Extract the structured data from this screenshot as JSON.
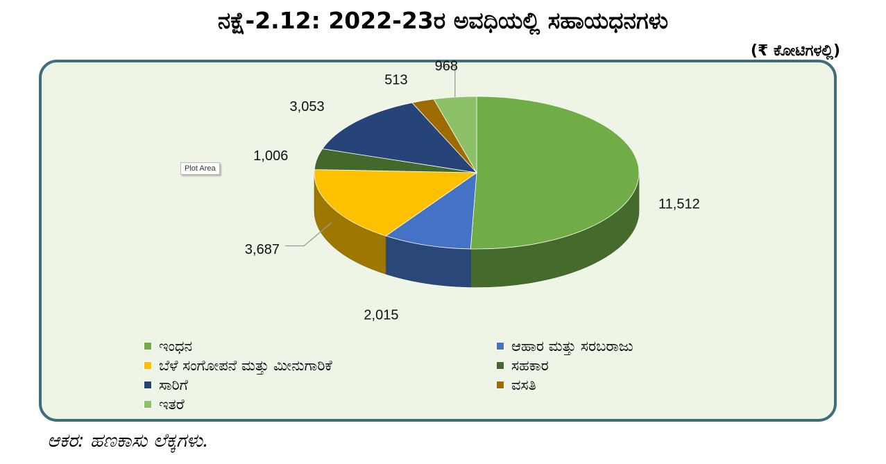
{
  "title": "ನಕ್ಷೆ-2.12:  2022-23ರ ಅವಧಿಯಲ್ಲಿ  ಸಹಾಯಧನಗಳು",
  "unit_label": "(₹ ಕೋಟಿಗಳಲ್ಲಿ)",
  "tooltip": "Plot Area",
  "source": "ಆಕರ:  ಹಣಕಾಸು  ಲೆಕ್ಕಗಳು.",
  "chart_data": {
    "type": "pie",
    "style": "3d",
    "legend_position": "bottom",
    "categories": [
      "ಇಂಧನ",
      "ಆಹಾರ ಮತ್ತು ಸರಬರಾಜು",
      "ಬೆಳೆ ಸಂಗೋಪನೆ ಮತ್ತು ಮೀನುಗಾರಿಕೆ",
      "ಸಹಕಾರ",
      "ಸಾರಿಗೆ",
      "ವಸತಿ",
      "ಇತರೆ"
    ],
    "values": [
      11512,
      2015,
      3687,
      1006,
      3053,
      513,
      968
    ],
    "value_labels": [
      "11,512",
      "2,015",
      "3,687",
      "1,006",
      "3,053",
      "513",
      "968"
    ],
    "colors": [
      "#70ad47",
      "#4472c4",
      "#ffc000",
      "#43682b",
      "#264478",
      "#9e6b00",
      "#8cc168"
    ]
  }
}
